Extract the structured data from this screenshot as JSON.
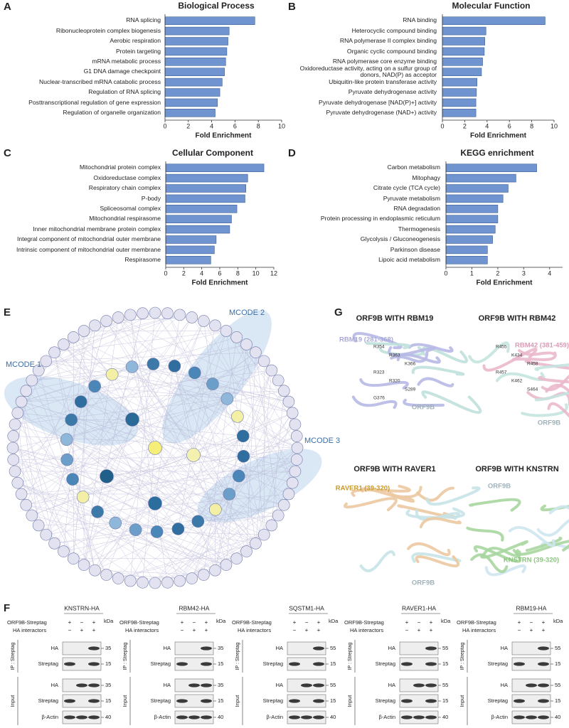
{
  "chart_data": [
    {
      "type": "bar",
      "panel": "A",
      "title": "Biological Process",
      "xlabel": "Fold Enrichment",
      "color": "#7094cf",
      "categories": [
        "RNA splicing",
        "Ribonucleoprotein complex biogenesis",
        "Aerobic respiration",
        "Protein targeting",
        "mRNA metabolic process",
        "G1 DNA damage checkpoint",
        "Nuclear-transcribed mRNA catabolic process",
        "Regulation of RNA splicing",
        "Posttranscriptional regulation of gene expression",
        "Regulation of organelle organization"
      ],
      "values": [
        7.7,
        5.5,
        5.4,
        5.3,
        5.2,
        5.1,
        4.9,
        4.7,
        4.5,
        4.3
      ],
      "xlim": [
        0,
        10
      ],
      "xticks": [
        0,
        2,
        4,
        6,
        8,
        10
      ]
    },
    {
      "type": "bar",
      "panel": "B",
      "title": "Molecular Function",
      "xlabel": "Fold Enrichment",
      "color": "#7094cf",
      "categories": [
        "RNA binding",
        "Heterocyclic compound binding",
        "RNA polymerase II complex binding",
        "Organic cyclic compound binding",
        "RNA polymerase core enzyme binding",
        "Oxidoreductase activity, acting on a sulfur group of donors, NAD(P) as acceptor",
        "Ubiquitin-like protein transferase activity",
        "Pyruvate dehydrogenase activity",
        "Pyruvate dehydrogenase [NAD(P)+] activity",
        "Pyruvate dehydrogenase (NAD+) activity"
      ],
      "values": [
        9.2,
        3.9,
        3.8,
        3.75,
        3.6,
        3.5,
        3.1,
        3.05,
        3.0,
        3.0
      ],
      "xlim": [
        0,
        10
      ],
      "xticks": [
        0,
        2,
        4,
        6,
        8,
        10
      ]
    },
    {
      "type": "bar",
      "panel": "C",
      "title": "Cellular Component",
      "xlabel": "Fold Enrichment",
      "color": "#7094cf",
      "categories": [
        "Mitochondrial protein complex",
        "Oxidoreductase complex",
        "Respiratory chain complex",
        "P-body",
        "Spliceosomal complex",
        "Mitochondrial respirasome",
        "Inner mitochondrial membrane protein complex",
        "Integral component of mitochondrial outer membrane",
        "Intrinsic component of mitochondrial outer membrane",
        "Respirasome"
      ],
      "values": [
        10.9,
        9.1,
        8.9,
        8.8,
        7.9,
        7.3,
        7.1,
        5.6,
        5.4,
        5.0
      ],
      "xlim": [
        0,
        12
      ],
      "xticks": [
        0,
        2,
        4,
        6,
        8,
        10,
        12
      ]
    },
    {
      "type": "bar",
      "panel": "D",
      "title": "KEGG enrichment",
      "xlabel": "Fold Enrichment",
      "color": "#7094cf",
      "categories": [
        "Carbon metabolism",
        "Mitophagy",
        "Citrate cycle (TCA cycle)",
        "Pyruvate metabolism",
        "RNA degradation",
        "Protein processing in endoplasmic reticulum",
        "Thermogenesis",
        "Glycolysis / Gluconeogenesis",
        "Parkinson disease",
        "Lipoic acid metabolism"
      ],
      "values": [
        3.5,
        2.7,
        2.4,
        2.2,
        2.0,
        2.0,
        1.9,
        1.8,
        1.6,
        1.6
      ],
      "xlim": [
        0,
        4.5
      ],
      "xticks": [
        0,
        1,
        2,
        3,
        4
      ]
    }
  ],
  "network": {
    "panel": "E",
    "clusters": [
      "MCODE 1",
      "MCODE 2",
      "MCODE 3"
    ]
  },
  "structures": {
    "panel": "G",
    "complexes": [
      {
        "title": "ORF9B WITH RBM19",
        "partner": "RBM19 (281-368)",
        "orf9b": "ORF9B",
        "residues": [
          "R354",
          "R363",
          "K366",
          "R323",
          "R320",
          "S289",
          "G376"
        ]
      },
      {
        "title": "ORF9B WITH RBM42",
        "partner": "RBM42 (381-459)",
        "orf9b": "ORF9B",
        "residues": [
          "R455",
          "K434",
          "R458",
          "R457",
          "K462",
          "S464"
        ]
      },
      {
        "title": "ORF9B WITH RAVER1",
        "partner": "RAVER1 (39-320)",
        "orf9b": "ORF9B",
        "residues": []
      },
      {
        "title": "ORF9B WITH KNSTRN",
        "partner": "KNSTRN (39-320)",
        "orf9b": "ORF9B",
        "residues": []
      }
    ]
  },
  "blots": {
    "panel": "F",
    "orf9b_row": "ORF9B-Streptag",
    "ha_row": "HA interactors",
    "orf9b_signs": [
      "+",
      "−",
      "+"
    ],
    "ha_signs": [
      "−",
      "+",
      "+"
    ],
    "kda": "kDa",
    "ip": "IP : Streptag",
    "input": "Input",
    "rows": [
      "HA",
      "Streptag",
      "HA",
      "Streptag",
      "β-Actin"
    ],
    "panels": [
      {
        "title": "KNSTRN-HA",
        "markers": [
          35,
          15,
          35,
          15,
          40
        ]
      },
      {
        "title": "RBM42-HA",
        "markers": [
          35,
          15,
          35,
          15,
          40
        ]
      },
      {
        "title": "SQSTM1-HA",
        "markers": [
          55,
          15,
          55,
          15,
          40
        ]
      },
      {
        "title": "RAVER1-HA",
        "markers": [
          55,
          15,
          55,
          15,
          40
        ]
      },
      {
        "title": "RBM19-HA",
        "markers": [
          55,
          15,
          55,
          15,
          40
        ]
      }
    ]
  }
}
